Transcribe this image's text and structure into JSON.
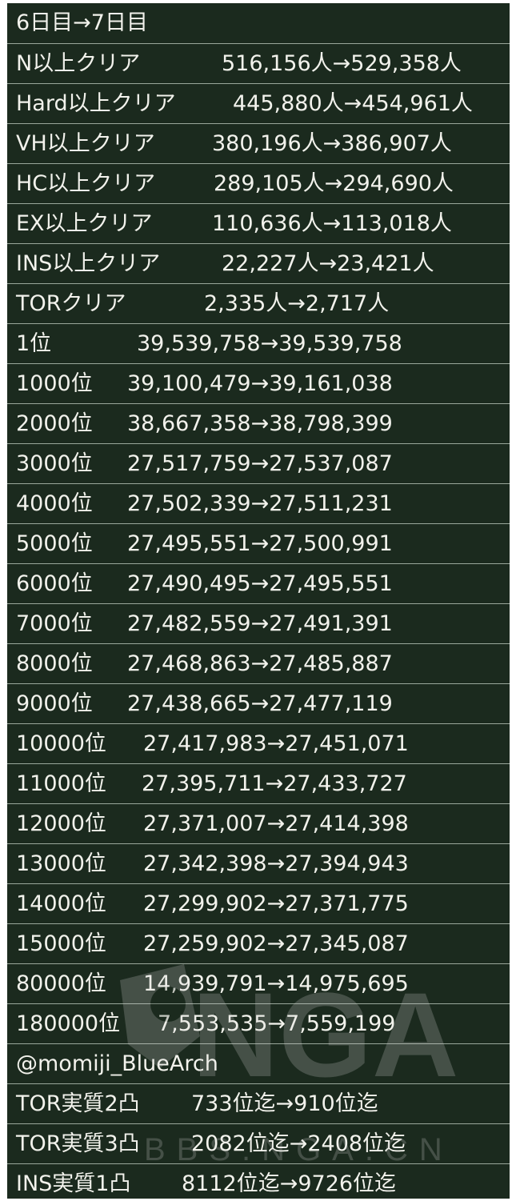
{
  "rows": [
    {
      "label": "6日目→7日目",
      "value": ""
    },
    {
      "label": "N以上クリア",
      "value": "516,156人→529,358人"
    },
    {
      "label": "Hard以上クリア",
      "value": "445,880人→454,961人"
    },
    {
      "label": "VH以上クリア",
      "value": "380,196人→386,907人"
    },
    {
      "label": "HC以上クリア",
      "value": "289,105人→294,690人"
    },
    {
      "label": "EX以上クリア",
      "value": "110,636人→113,018人"
    },
    {
      "label": "INS以上クリア",
      "value": "22,227人→23,421人"
    },
    {
      "label": "TORクリア",
      "value": "2,335人→2,717人"
    },
    {
      "label": "1位",
      "value": "39,539,758→39,539,758"
    },
    {
      "label": "1000位",
      "value": "39,100,479→39,161,038"
    },
    {
      "label": "2000位",
      "value": "38,667,358→38,798,399"
    },
    {
      "label": "3000位",
      "value": "27,517,759→27,537,087"
    },
    {
      "label": "4000位",
      "value": "27,502,339→27,511,231"
    },
    {
      "label": "5000位",
      "value": "27,495,551→27,500,991"
    },
    {
      "label": "6000位",
      "value": "27,490,495→27,495,551"
    },
    {
      "label": "7000位",
      "value": "27,482,559→27,491,391"
    },
    {
      "label": "8000位",
      "value": "27,468,863→27,485,887"
    },
    {
      "label": "9000位",
      "value": "27,438,665→27,477,119"
    },
    {
      "label": "10000位",
      "value": "27,417,983→27,451,071"
    },
    {
      "label": "11000位",
      "value": "27,395,711→27,433,727"
    },
    {
      "label": "12000位",
      "value": "27,371,007→27,414,398"
    },
    {
      "label": "13000位",
      "value": "27,342,398→27,394,943"
    },
    {
      "label": "14000位",
      "value": "27,299,902→27,371,775"
    },
    {
      "label": "15000位",
      "value": "27,259,902→27,345,087"
    },
    {
      "label": "80000位",
      "value": "14,939,791→14,975,695"
    },
    {
      "label": "180000位",
      "value": "7,553,535→7,559,199"
    },
    {
      "label": "@momiji_BlueArch",
      "value": ""
    },
    {
      "label": "TOR実質2凸",
      "value": "733位迄→910位迄"
    },
    {
      "label": "TOR実質3凸",
      "value": "2082位迄→2408位迄"
    },
    {
      "label": "INS実質1凸",
      "value": "8112位迄→9726位迄"
    }
  ],
  "watermark": {
    "logo": "NGA",
    "url": "BBS.NGA.CN"
  },
  "colors": {
    "background": "#1b2a1e",
    "text": "#f2f2ec",
    "divider": "#9aa79b"
  }
}
